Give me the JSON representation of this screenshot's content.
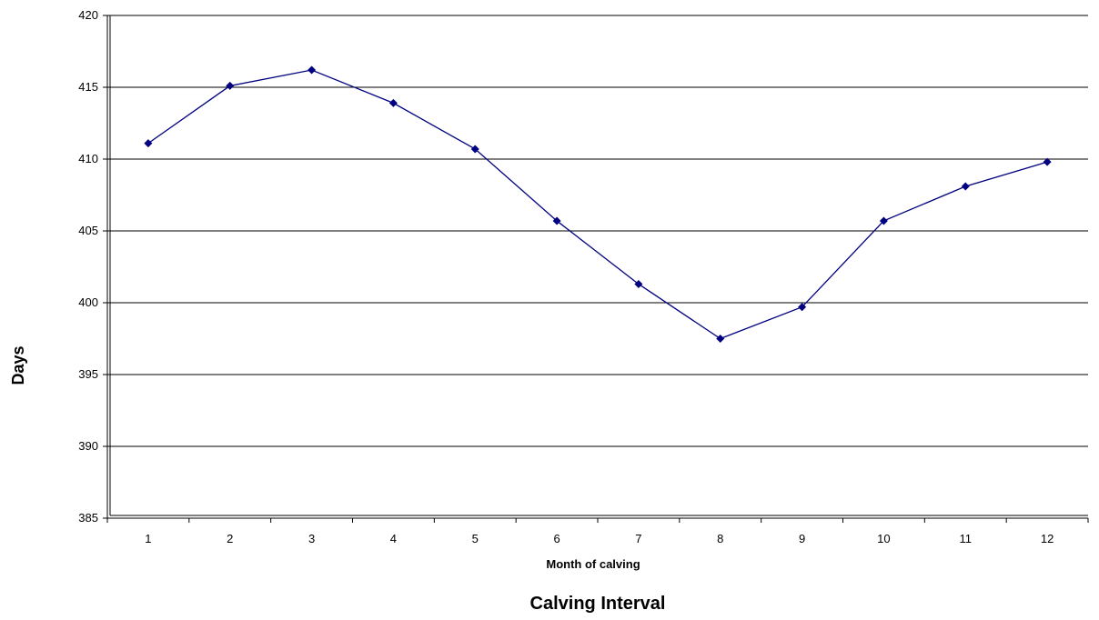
{
  "chart_data": {
    "type": "line",
    "title": "Calving Interval",
    "xlabel": "Month of calving",
    "ylabel": "Days",
    "categories": [
      "1",
      "2",
      "3",
      "4",
      "5",
      "6",
      "7",
      "8",
      "9",
      "10",
      "11",
      "12"
    ],
    "series": [
      {
        "values": [
          411.1,
          415.1,
          416.2,
          413.9,
          410.7,
          405.7,
          401.3,
          397.5,
          399.7,
          405.7,
          408.1,
          409.8
        ]
      }
    ],
    "ylim": [
      385,
      420
    ],
    "yticks": [
      "385",
      "390",
      "395",
      "400",
      "405",
      "410",
      "415",
      "420"
    ],
    "grid": "horizontal",
    "legend": "none",
    "colors": {
      "line": "#000080",
      "marker": "#000080",
      "grid": "#000000"
    }
  }
}
